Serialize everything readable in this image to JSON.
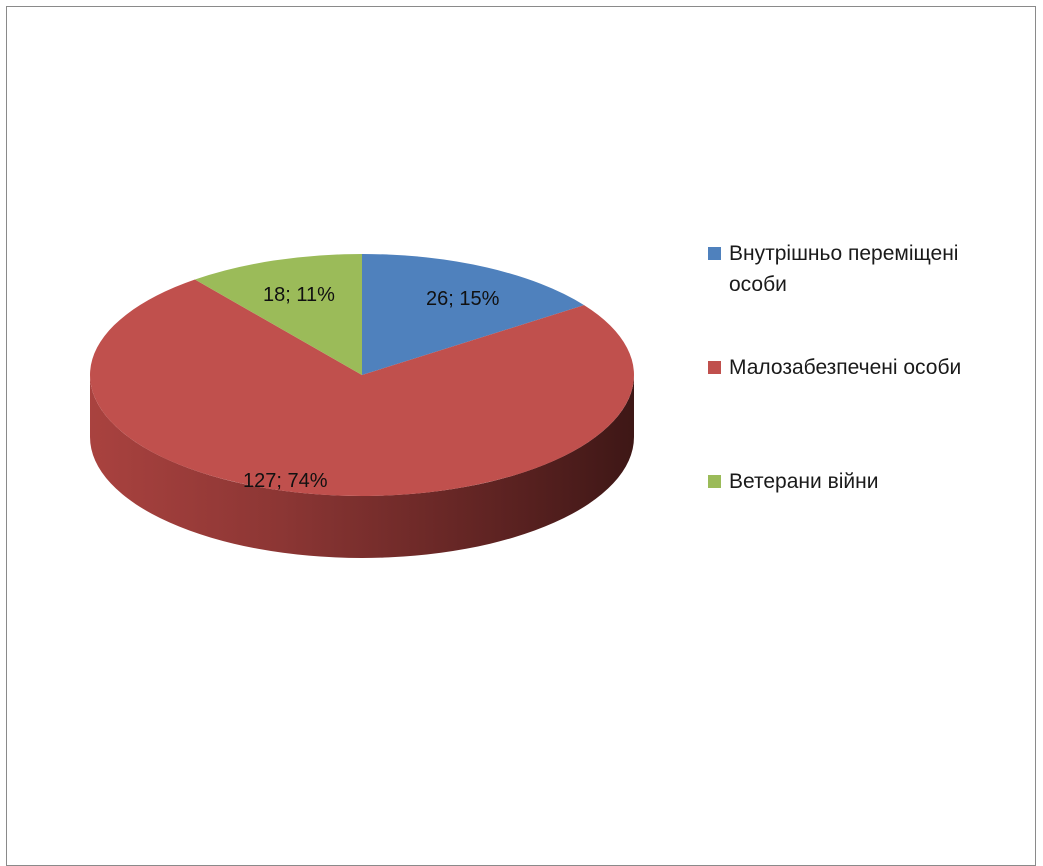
{
  "chart_data": {
    "type": "pie",
    "title": "",
    "categories": [
      "Внутрішньо переміщені особи",
      "Малозабезпечені особи",
      "Ветерани війни"
    ],
    "values": [
      26,
      127,
      18
    ],
    "percents": [
      15,
      74,
      11
    ],
    "data_labels": [
      "26; 15%",
      "127; 74%",
      "18; 11%"
    ],
    "colors": [
      "#4f81bd",
      "#c0504d",
      "#9bbb59"
    ],
    "legend_placement": "right",
    "three_d": true
  },
  "legend": {
    "items": [
      {
        "label": "Внутрішньо переміщені особи",
        "color": "#4f81bd"
      },
      {
        "label": "Малозабезпечені особи",
        "color": "#c0504d"
      },
      {
        "label": "Ветерани війни",
        "color": "#9bbb59"
      }
    ]
  }
}
